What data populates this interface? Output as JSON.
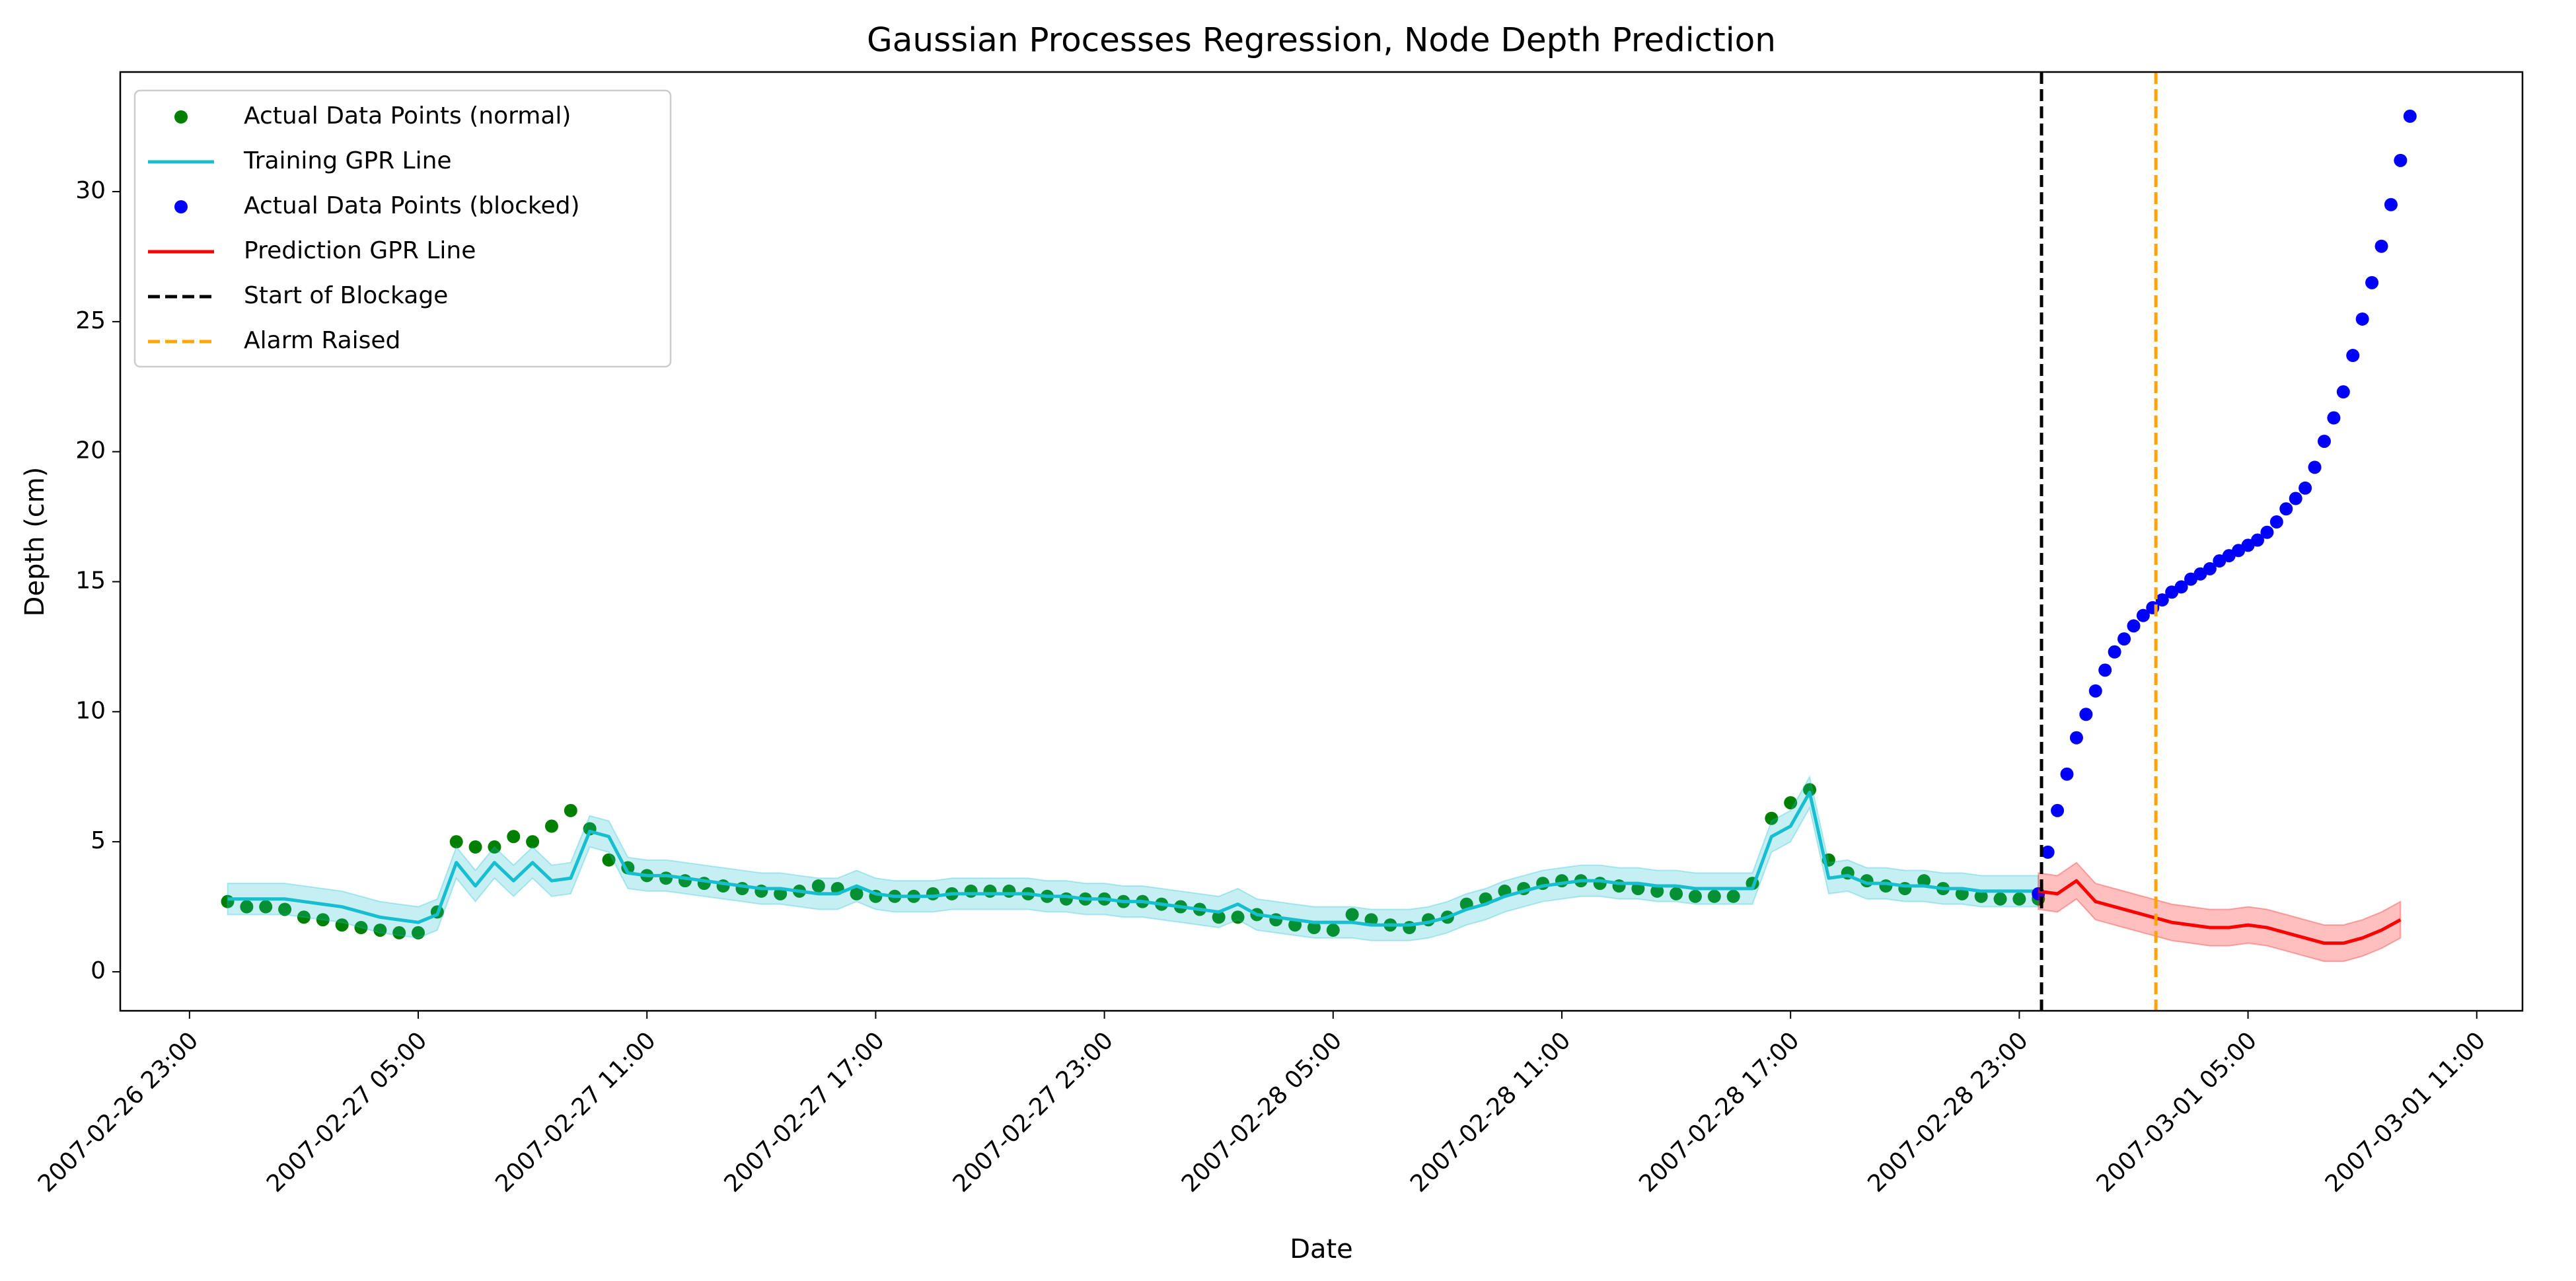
{
  "chart_data": {
    "type": "line",
    "title": "Gaussian Processes Regression, Node Depth Prediction",
    "xlabel": "Date",
    "ylabel": "Depth (cm)",
    "xlim": [
      "2007-02-26 21:11",
      "2007-03-01 12:12"
    ],
    "xticks": [
      "2007-02-26 23:00",
      "2007-02-27 05:00",
      "2007-02-27 11:00",
      "2007-02-27 17:00",
      "2007-02-27 23:00",
      "2007-02-28 05:00",
      "2007-02-28 11:00",
      "2007-02-28 17:00",
      "2007-02-28 23:00",
      "2007-03-01 05:00",
      "2007-03-01 11:00"
    ],
    "ylim": [
      -1.5,
      34.6
    ],
    "yticks": [
      0,
      5,
      10,
      15,
      20,
      25,
      30
    ],
    "legend": "upper left",
    "x": [
      "2007-02-27 00:00",
      "2007-02-27 00:30",
      "2007-02-27 01:00",
      "2007-02-27 01:30",
      "2007-02-27 02:00",
      "2007-02-27 02:30",
      "2007-02-27 03:00",
      "2007-02-27 03:30",
      "2007-02-27 04:00",
      "2007-02-27 04:30",
      "2007-02-27 05:00",
      "2007-02-27 05:30",
      "2007-02-27 06:00",
      "2007-02-27 06:30",
      "2007-02-27 07:00",
      "2007-02-27 07:30",
      "2007-02-27 08:00",
      "2007-02-27 08:30",
      "2007-02-27 09:00",
      "2007-02-27 09:30",
      "2007-02-27 10:00",
      "2007-02-27 10:30",
      "2007-02-27 11:00",
      "2007-02-27 11:30",
      "2007-02-27 12:00",
      "2007-02-27 12:30",
      "2007-02-27 13:00",
      "2007-02-27 13:30",
      "2007-02-27 14:00",
      "2007-02-27 14:30",
      "2007-02-27 15:00",
      "2007-02-27 15:30",
      "2007-02-27 16:00",
      "2007-02-27 16:30",
      "2007-02-27 17:00",
      "2007-02-27 17:30",
      "2007-02-27 18:00",
      "2007-02-27 18:30",
      "2007-02-27 19:00",
      "2007-02-27 19:30",
      "2007-02-27 20:00",
      "2007-02-27 20:30",
      "2007-02-27 21:00",
      "2007-02-27 21:30",
      "2007-02-27 22:00",
      "2007-02-27 22:30",
      "2007-02-27 23:00",
      "2007-02-27 23:30",
      "2007-02-28 00:00",
      "2007-02-28 00:30",
      "2007-02-28 01:00",
      "2007-02-28 01:30",
      "2007-02-28 02:00",
      "2007-02-28 02:30",
      "2007-02-28 03:00",
      "2007-02-28 03:30",
      "2007-02-28 04:00",
      "2007-02-28 04:30",
      "2007-02-28 05:00",
      "2007-02-28 05:30",
      "2007-02-28 06:00",
      "2007-02-28 06:30",
      "2007-02-28 07:00",
      "2007-02-28 07:30",
      "2007-02-28 08:00",
      "2007-02-28 08:30",
      "2007-02-28 09:00",
      "2007-02-28 09:30",
      "2007-02-28 10:00",
      "2007-02-28 10:30",
      "2007-02-28 11:00",
      "2007-02-28 11:30",
      "2007-02-28 12:00",
      "2007-02-28 12:30",
      "2007-02-28 13:00",
      "2007-02-28 13:30",
      "2007-02-28 14:00",
      "2007-02-28 14:30",
      "2007-02-28 15:00",
      "2007-02-28 15:30",
      "2007-02-28 16:00",
      "2007-02-28 16:30",
      "2007-02-28 17:00",
      "2007-02-28 17:30",
      "2007-02-28 18:00",
      "2007-02-28 18:30",
      "2007-02-28 19:00",
      "2007-02-28 19:30",
      "2007-02-28 20:00",
      "2007-02-28 20:30",
      "2007-02-28 21:00",
      "2007-02-28 21:30",
      "2007-02-28 22:00",
      "2007-02-28 22:30",
      "2007-02-28 23:00",
      "2007-02-28 23:30"
    ],
    "series": [
      {
        "name": "Actual Data Points (normal)",
        "kind": "scatter",
        "color": "#008000",
        "values": [
          2.7,
          2.5,
          2.5,
          2.4,
          2.1,
          2.0,
          1.8,
          1.7,
          1.6,
          1.5,
          1.5,
          2.3,
          5.0,
          4.8,
          4.8,
          5.2,
          5.0,
          5.6,
          6.2,
          5.5,
          4.3,
          4.0,
          3.7,
          3.6,
          3.5,
          3.4,
          3.3,
          3.2,
          3.1,
          3.0,
          3.1,
          3.3,
          3.2,
          3.0,
          2.9,
          2.9,
          2.9,
          3.0,
          3.0,
          3.1,
          3.1,
          3.1,
          3.0,
          2.9,
          2.8,
          2.8,
          2.8,
          2.7,
          2.7,
          2.6,
          2.5,
          2.4,
          2.1,
          2.1,
          2.2,
          2.0,
          1.8,
          1.7,
          1.6,
          2.2,
          2.0,
          1.8,
          1.7,
          2.0,
          2.1,
          2.6,
          2.8,
          3.1,
          3.2,
          3.4,
          3.5,
          3.5,
          3.4,
          3.3,
          3.2,
          3.1,
          3.0,
          2.9,
          2.9,
          2.9,
          3.4,
          5.9,
          6.5,
          7.0,
          4.3,
          3.8,
          3.5,
          3.3,
          3.2,
          3.5,
          3.2,
          3.0,
          2.9,
          2.8,
          2.8,
          2.8
        ]
      },
      {
        "name": "Training GPR Line",
        "kind": "line",
        "color": "#17becf",
        "error": 0.6,
        "values": [
          2.8,
          2.8,
          2.8,
          2.8,
          2.7,
          2.6,
          2.5,
          2.3,
          2.1,
          2.0,
          1.9,
          2.2,
          4.2,
          3.3,
          4.2,
          3.5,
          4.2,
          3.5,
          3.6,
          5.4,
          5.2,
          3.8,
          3.7,
          3.7,
          3.6,
          3.5,
          3.4,
          3.3,
          3.2,
          3.2,
          3.1,
          3.0,
          3.0,
          3.3,
          3.0,
          2.9,
          2.9,
          2.9,
          3.0,
          3.0,
          3.0,
          3.0,
          3.0,
          2.9,
          2.9,
          2.8,
          2.8,
          2.7,
          2.7,
          2.6,
          2.5,
          2.4,
          2.3,
          2.6,
          2.2,
          2.1,
          2.0,
          1.9,
          1.9,
          1.9,
          1.8,
          1.8,
          1.8,
          1.9,
          2.1,
          2.4,
          2.6,
          2.9,
          3.1,
          3.3,
          3.4,
          3.5,
          3.5,
          3.4,
          3.4,
          3.3,
          3.3,
          3.2,
          3.2,
          3.2,
          3.2,
          5.2,
          5.6,
          6.9,
          3.6,
          3.7,
          3.4,
          3.4,
          3.3,
          3.3,
          3.2,
          3.2,
          3.1,
          3.1,
          3.1,
          3.1
        ]
      },
      {
        "name": "Actual Data Points (blocked)",
        "kind": "scatter",
        "color": "#0000ff",
        "x": [
          "2007-02-28 23:30",
          "2007-02-28 23:45",
          "2007-03-01 00:00",
          "2007-03-01 00:15",
          "2007-03-01 00:30",
          "2007-03-01 00:45",
          "2007-03-01 01:00",
          "2007-03-01 01:15",
          "2007-03-01 01:30",
          "2007-03-01 01:45",
          "2007-03-01 02:00",
          "2007-03-01 02:15",
          "2007-03-01 02:30",
          "2007-03-01 02:45",
          "2007-03-01 03:00",
          "2007-03-01 03:15",
          "2007-03-01 03:30",
          "2007-03-01 03:45",
          "2007-03-01 04:00",
          "2007-03-01 04:15",
          "2007-03-01 04:30",
          "2007-03-01 04:45",
          "2007-03-01 05:00",
          "2007-03-01 05:15",
          "2007-03-01 05:30",
          "2007-03-01 05:45",
          "2007-03-01 06:00",
          "2007-03-01 06:15",
          "2007-03-01 06:30",
          "2007-03-01 06:45",
          "2007-03-01 07:00",
          "2007-03-01 07:15",
          "2007-03-01 07:30",
          "2007-03-01 07:45",
          "2007-03-01 08:00",
          "2007-03-01 08:15",
          "2007-03-01 08:30",
          "2007-03-01 08:45",
          "2007-03-01 09:00",
          "2007-03-01 09:15"
        ],
        "values": [
          3.0,
          4.6,
          6.2,
          7.6,
          9.0,
          9.9,
          10.8,
          11.6,
          12.3,
          12.8,
          13.3,
          13.7,
          14.0,
          14.3,
          14.6,
          14.8,
          15.1,
          15.3,
          15.5,
          15.8,
          16.0,
          16.2,
          16.4,
          16.6,
          16.9,
          17.3,
          17.8,
          18.2,
          18.6,
          19.4,
          20.4,
          21.3,
          22.3,
          23.7,
          25.1,
          26.5,
          27.9,
          29.5,
          31.2,
          32.9
        ]
      },
      {
        "name": "Prediction GPR Line",
        "kind": "line",
        "color": "#ff0000",
        "error": 0.7,
        "x": [
          "2007-02-28 23:30",
          "2007-03-01 00:00",
          "2007-03-01 00:30",
          "2007-03-01 01:00",
          "2007-03-01 01:30",
          "2007-03-01 02:00",
          "2007-03-01 02:30",
          "2007-03-01 03:00",
          "2007-03-01 03:30",
          "2007-03-01 04:00",
          "2007-03-01 04:30",
          "2007-03-01 05:00",
          "2007-03-01 05:30",
          "2007-03-01 06:00",
          "2007-03-01 06:30",
          "2007-03-01 07:00",
          "2007-03-01 07:30",
          "2007-03-01 08:00",
          "2007-03-01 08:30",
          "2007-03-01 09:00"
        ],
        "values": [
          3.1,
          3.0,
          3.5,
          2.7,
          2.5,
          2.3,
          2.1,
          1.9,
          1.8,
          1.7,
          1.7,
          1.8,
          1.7,
          1.5,
          1.3,
          1.1,
          1.1,
          1.3,
          1.6,
          2.0
        ]
      },
      {
        "name": "Start of Blockage",
        "kind": "vline",
        "color": "#000000",
        "at": "2007-02-28 23:35"
      },
      {
        "name": "Alarm Raised",
        "kind": "vline",
        "color": "#ffa500",
        "at": "2007-03-01 02:35"
      }
    ]
  }
}
